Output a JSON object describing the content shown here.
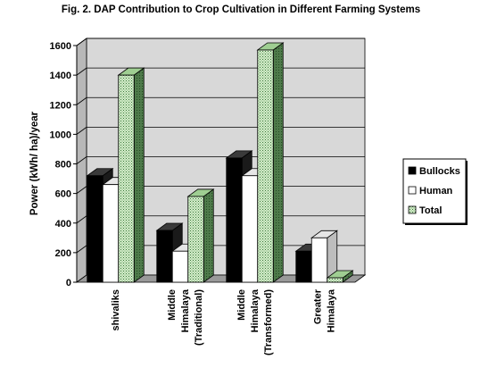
{
  "chart_data": {
    "type": "bar",
    "title": "Fig. 2. DAP Contribution to Crop Cultivation in Different Farming Systems",
    "ylabel": "Power (kWh/ ha)/year",
    "xlabel": "",
    "ylim": [
      0,
      1600
    ],
    "yticks": [
      "0",
      "200",
      "400",
      "600",
      "800",
      "1000",
      "1200",
      "1400",
      "1600"
    ],
    "categories": [
      [
        "shivaliks"
      ],
      [
        "Middle",
        "Himalaya",
        "(Traditional)"
      ],
      [
        "Middle",
        "Himalaya",
        "(Transformed)"
      ],
      [
        "Greater",
        "Himalaya"
      ]
    ],
    "series": [
      {
        "name": "Bullocks",
        "values": [
          720,
          350,
          840,
          210
        ],
        "color": "#000000"
      },
      {
        "name": "Human",
        "values": [
          660,
          210,
          720,
          300
        ],
        "color": "#ffffff"
      },
      {
        "name": "Total",
        "values": [
          1400,
          580,
          1570,
          30
        ],
        "color": "#c8e8c0"
      }
    ],
    "grid": true,
    "legend_position": "right",
    "style": "3d-clustered-bar"
  }
}
